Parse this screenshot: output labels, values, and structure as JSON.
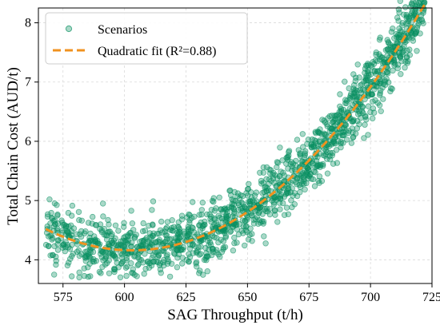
{
  "chart_data": {
    "type": "scatter",
    "xlabel": "SAG Throughput (t/h)",
    "ylabel": "Total Chain Cost (AUD/t)",
    "xlim": [
      565,
      725
    ],
    "ylim": [
      3.6,
      8.25
    ],
    "x_ticks": [
      "575",
      "600",
      "625",
      "650",
      "675",
      "700",
      "725"
    ],
    "y_ticks": [
      "4",
      "5",
      "6",
      "7",
      "8"
    ],
    "grid": true,
    "legend_position": "top-left",
    "series": [
      {
        "name": "Scenarios",
        "kind": "scatter",
        "color": "#089060",
        "point_count": 1500,
        "x_range": [
          568,
          722
        ],
        "noise_sd": 0.25
      },
      {
        "name": "Quadratic fit (R²=0.88)",
        "kind": "line",
        "style": "dashed",
        "color": "#f0921f",
        "x_range": [
          568,
          722
        ],
        "coefficients": {
          "a": 0.000293,
          "vertex_x": 603,
          "vertex_y": 4.16
        }
      }
    ]
  }
}
